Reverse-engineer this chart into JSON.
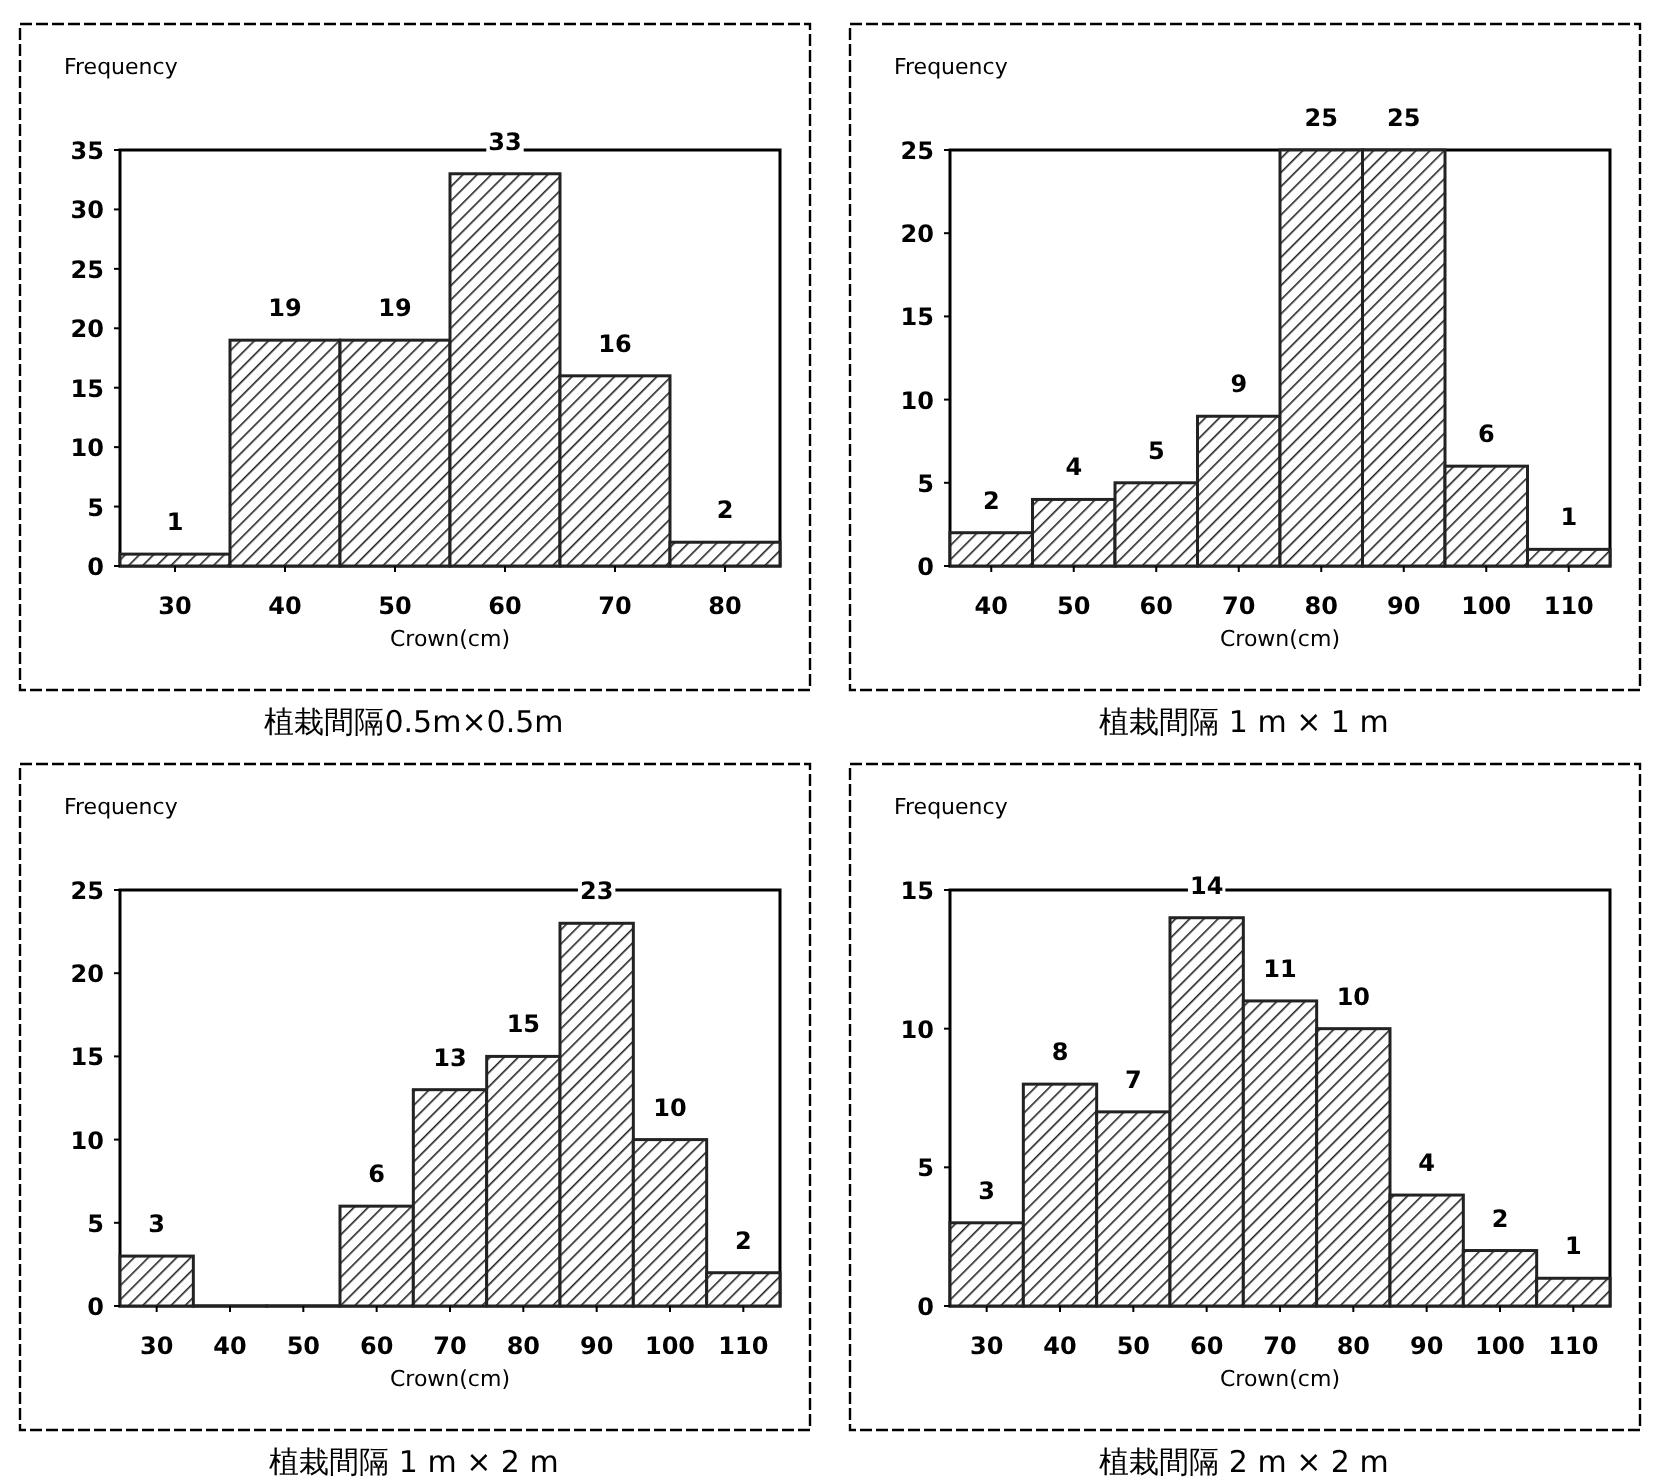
{
  "chart_data": [
    {
      "type": "histogram",
      "title": "植栽間隔0.5m×0.5m",
      "xlabel": "Crown(cm)",
      "ylabel": "Frequency",
      "bins": [
        25,
        35,
        45,
        55,
        65,
        75,
        85
      ],
      "values": [
        1,
        19,
        19,
        33,
        16,
        2
      ],
      "color": "#222222",
      "xlim": [
        25,
        85
      ],
      "xticks": [
        30,
        40,
        50,
        60,
        70,
        80
      ],
      "ylim": [
        0,
        35
      ],
      "yticks": [
        0,
        5,
        10,
        15,
        20,
        25,
        30,
        35
      ],
      "data_labels": true
    },
    {
      "type": "histogram",
      "title": "植栽間隔 1 m × 1 m",
      "xlabel": "Crown(cm)",
      "ylabel": "Frequency",
      "bins": [
        35,
        45,
        55,
        65,
        75,
        85,
        95,
        105,
        115
      ],
      "values": [
        2,
        4,
        5,
        9,
        25,
        25,
        6,
        1
      ],
      "color": "#222222",
      "xlim": [
        35,
        115
      ],
      "xticks": [
        40,
        50,
        60,
        70,
        80,
        90,
        100,
        110
      ],
      "ylim": [
        0,
        25
      ],
      "yticks": [
        0,
        5,
        10,
        15,
        20,
        25
      ],
      "data_labels": true
    },
    {
      "type": "histogram",
      "title": "植栽間隔 1 m × 2 m",
      "xlabel": "Crown(cm)",
      "ylabel": "Frequency",
      "bins": [
        25,
        35,
        45,
        55,
        65,
        75,
        85,
        95,
        105,
        115
      ],
      "values": [
        3,
        0,
        0,
        6,
        13,
        15,
        23,
        10,
        2
      ],
      "value_labels": [
        "3",
        null,
        null,
        "6",
        "13",
        "15",
        "23",
        "10",
        "2"
      ],
      "color": "#222222",
      "xlim": [
        25,
        115
      ],
      "xticks": [
        30,
        40,
        50,
        60,
        70,
        80,
        90,
        100,
        110
      ],
      "ylim": [
        0,
        25
      ],
      "yticks": [
        0,
        5,
        10,
        15,
        20,
        25
      ]
    },
    {
      "type": "histogram",
      "title": "植栽間隔 2 m × 2 m",
      "xlabel": "Crown(cm)",
      "ylabel": "Frequency",
      "bins": [
        25,
        35,
        45,
        55,
        65,
        75,
        85,
        95,
        105,
        115
      ],
      "values": [
        3,
        8,
        7,
        14,
        11,
        10,
        4,
        2,
        1
      ],
      "color": "#222222",
      "xlim": [
        25,
        115
      ],
      "xticks": [
        30,
        40,
        50,
        60,
        70,
        80,
        90,
        100,
        110
      ],
      "ylim": [
        0,
        15
      ],
      "yticks": [
        0,
        5,
        10,
        15
      ],
      "data_labels": true
    }
  ]
}
